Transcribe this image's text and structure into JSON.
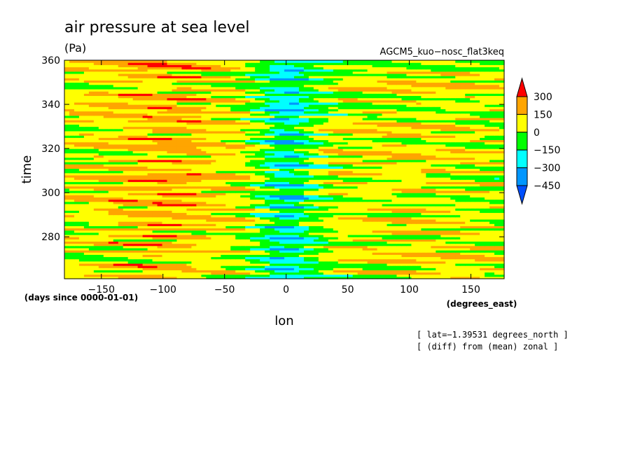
{
  "chart_data": {
    "type": "heatmap",
    "title": "air pressure at sea level",
    "units": "(Pa)",
    "subtitle": "AGCM5_kuo−nosc_flat3keq",
    "xlabel": "lon",
    "xunits": "(degrees_east)",
    "ylabel": "time",
    "yunits": "(days since 0000-01-01)",
    "xlim": [
      -180,
      177
    ],
    "ylim": [
      261,
      360
    ],
    "xticks": [
      -150,
      -100,
      -50,
      0,
      50,
      100,
      150
    ],
    "xtick_labels": [
      "−150",
      "−100",
      "−50",
      "0",
      "50",
      "100",
      "150"
    ],
    "yticks": [
      280,
      300,
      320,
      340,
      360
    ],
    "ytick_labels": [
      "280",
      "300",
      "320",
      "340",
      "360"
    ],
    "annotations": [
      "[ lat=−1.39531 degrees_north ]",
      "[ (diff) from (mean) zonal ]"
    ],
    "colorbar": {
      "levels": [
        300,
        150,
        0,
        -150,
        -300,
        -450
      ],
      "labels": [
        "300",
        "150",
        "0",
        "−150",
        "−300",
        "−450"
      ],
      "colors": [
        "#ff0000",
        "#ffa500",
        "#ffff00",
        "#00ff00",
        "#00ffff",
        "#0096ff",
        "#0050ff"
      ]
    },
    "structure": {
      "description_cells": "time-longitude Hovmoller of zonal anomaly; negative band near lon 0, positive band near lon -100",
      "bands": [
        {
          "lon_center": 0,
          "lon_halfwidth": 25,
          "value": -250
        },
        {
          "lon_center": -100,
          "lon_halfwidth": 60,
          "value": 120
        },
        {
          "lon_center": 110,
          "lon_halfwidth": 55,
          "value": 60
        }
      ]
    }
  }
}
